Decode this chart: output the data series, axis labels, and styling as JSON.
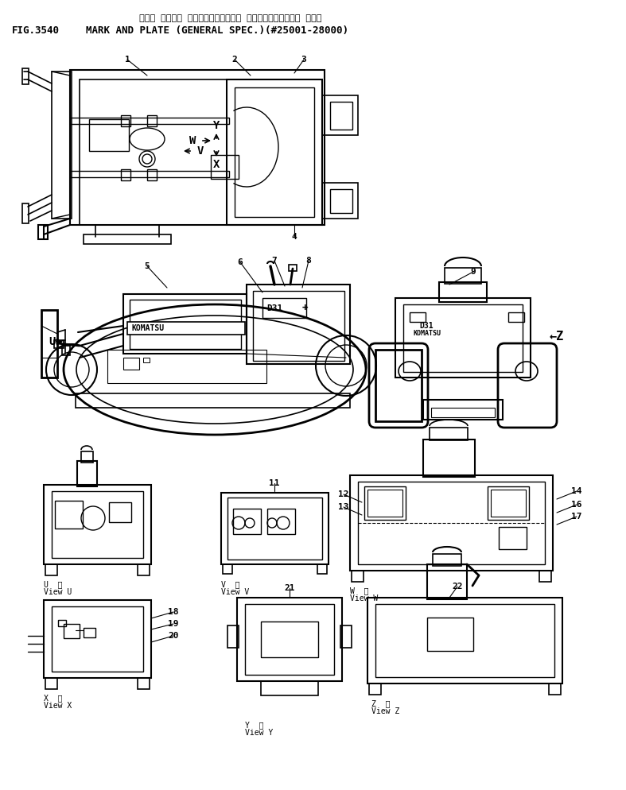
{
  "title_japanese": "マーク オヤビ゚ プレート（イッパン シヨウ）（カイガイ ヨウ）",
  "title_english": "MARK AND PLATE (GENERAL SPEC.)(#25001-28000)",
  "fig_number": "FIG.3540",
  "bg_color": "#ffffff",
  "line_color": "#000000",
  "text_color": "#000000",
  "fig_width": 7.87,
  "fig_height": 9.94,
  "dpi": 100
}
